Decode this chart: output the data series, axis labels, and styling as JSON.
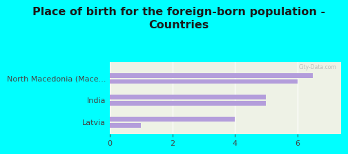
{
  "title": "Place of birth for the foreign-born population -\nCountries",
  "categories": [
    "North Macedonia (Mace...",
    "India",
    "Latvia"
  ],
  "bar_values_1": [
    6.5,
    5.0,
    4.0
  ],
  "bar_values_2": [
    6.0,
    5.0,
    1.0
  ],
  "bar_color": "#b39ddb",
  "background_color": "#00ffff",
  "plot_bg_color": "#eef2e6",
  "xlim": [
    0,
    7.4
  ],
  "xticks": [
    0,
    2,
    4,
    6
  ],
  "title_fontsize": 11.5,
  "label_fontsize": 8.0,
  "tick_fontsize": 8.0
}
